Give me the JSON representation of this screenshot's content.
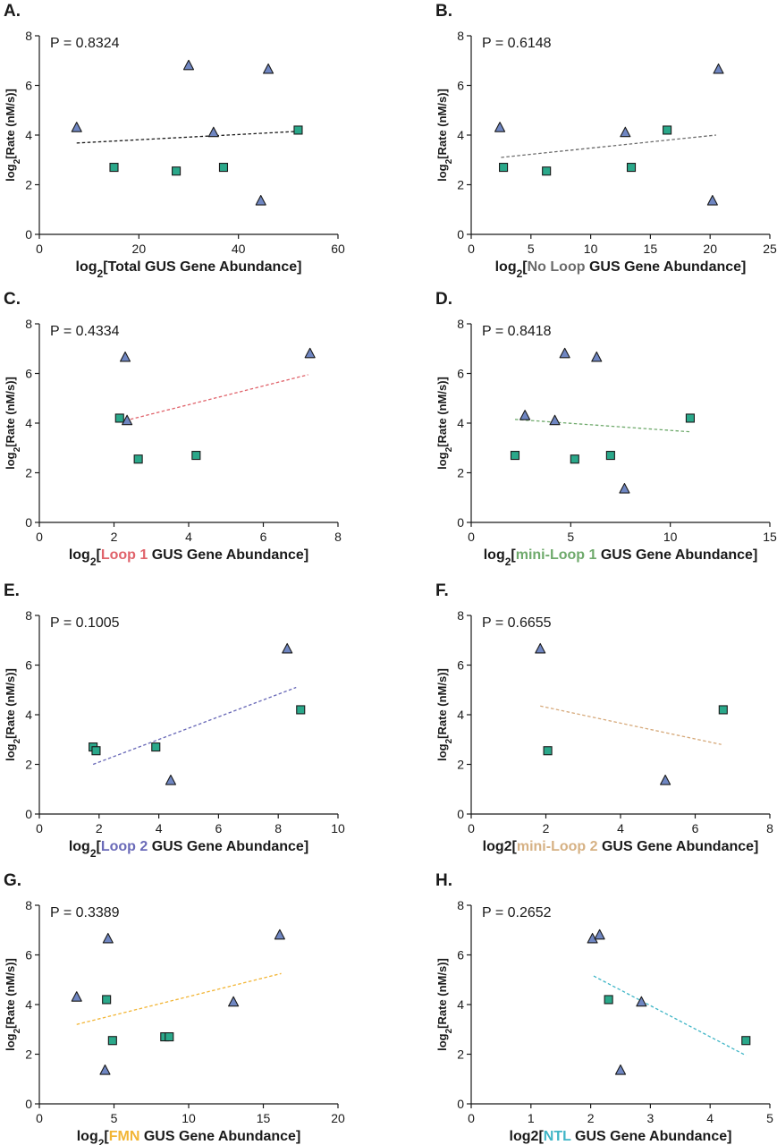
{
  "colors": {
    "triangle": "#6f86c2",
    "square": "#2aa88a",
    "text": "#1a1a1a"
  },
  "chart_data": [
    {
      "type": "scatter",
      "panel": "A.",
      "p_label": "P = 0.8324",
      "xlabel_parts": [
        {
          "text": "log"
        },
        {
          "text": "2",
          "sub": true
        },
        {
          "text": "[Total GUS Gene Abundance]"
        }
      ],
      "ylabel_parts": [
        {
          "text": "log"
        },
        {
          "text": "2",
          "sub": true
        },
        {
          "text": "[Rate (nM/s)]"
        }
      ],
      "xlim": [
        0,
        60
      ],
      "xticks": [
        0,
        20,
        40,
        60
      ],
      "ylim": [
        0,
        8
      ],
      "yticks": [
        0,
        2,
        4,
        6,
        8
      ],
      "trend_color": "#1a1a1a",
      "trendline": [
        [
          7.5,
          3.68
        ],
        [
          52,
          4.15
        ]
      ],
      "triangles": [
        [
          7.5,
          4.3
        ],
        [
          30,
          6.8
        ],
        [
          35,
          4.1
        ],
        [
          44.5,
          1.35
        ],
        [
          46,
          6.65
        ]
      ],
      "squares": [
        [
          15,
          2.7
        ],
        [
          27.5,
          2.55
        ],
        [
          37,
          2.7
        ],
        [
          52,
          4.2
        ]
      ]
    },
    {
      "type": "scatter",
      "panel": "B.",
      "p_label": "P = 0.6148",
      "xlabel_parts": [
        {
          "text": "log"
        },
        {
          "text": "2",
          "sub": true
        },
        {
          "text": "["
        },
        {
          "text": "No Loop",
          "color": "#6b6b6b"
        },
        {
          "text": " GUS Gene Abundance]"
        }
      ],
      "ylabel_parts": [
        {
          "text": "log"
        },
        {
          "text": "2",
          "sub": true
        },
        {
          "text": "[Rate (nM/s)]"
        }
      ],
      "xlim": [
        0,
        25
      ],
      "xticks": [
        0,
        5,
        10,
        15,
        20,
        25
      ],
      "ylim": [
        0,
        8
      ],
      "yticks": [
        0,
        2,
        4,
        6,
        8
      ],
      "trend_color": "#6b6b6b",
      "trendline": [
        [
          2.5,
          3.1
        ],
        [
          20.5,
          4.0
        ]
      ],
      "triangles": [
        [
          2.4,
          4.3
        ],
        [
          12.9,
          4.1
        ],
        [
          20.2,
          1.35
        ],
        [
          20.7,
          6.65
        ]
      ],
      "squares": [
        [
          2.7,
          2.7
        ],
        [
          6.3,
          2.55
        ],
        [
          13.4,
          2.7
        ],
        [
          16.4,
          4.2
        ]
      ]
    },
    {
      "type": "scatter",
      "panel": "C.",
      "p_label": "P = 0.4334",
      "xlabel_parts": [
        {
          "text": "log"
        },
        {
          "text": "2",
          "sub": true
        },
        {
          "text": "["
        },
        {
          "text": "Loop 1",
          "color": "#e0636b"
        },
        {
          "text": " GUS Gene Abundance]"
        }
      ],
      "ylabel_parts": [
        {
          "text": "log"
        },
        {
          "text": "2",
          "sub": true
        },
        {
          "text": "[Rate (nM/s)]"
        }
      ],
      "xlim": [
        0,
        8
      ],
      "xticks": [
        0,
        2,
        4,
        6,
        8
      ],
      "ylim": [
        0,
        8
      ],
      "yticks": [
        0,
        2,
        4,
        6,
        8
      ],
      "trend_color": "#e0636b",
      "trendline": [
        [
          2.3,
          4.1
        ],
        [
          7.2,
          5.95
        ]
      ],
      "triangles": [
        [
          2.3,
          6.65
        ],
        [
          2.35,
          4.1
        ],
        [
          7.25,
          6.8
        ]
      ],
      "squares": [
        [
          2.15,
          4.2
        ],
        [
          2.65,
          2.55
        ],
        [
          4.2,
          2.7
        ]
      ]
    },
    {
      "type": "scatter",
      "panel": "D.",
      "p_label": "P = 0.8418",
      "xlabel_parts": [
        {
          "text": "log"
        },
        {
          "text": "2",
          "sub": true
        },
        {
          "text": "["
        },
        {
          "text": "mini-Loop 1",
          "color": "#6faa6c"
        },
        {
          "text": " GUS Gene Abundance]"
        }
      ],
      "ylabel_parts": [
        {
          "text": "log"
        },
        {
          "text": "2",
          "sub": true
        },
        {
          "text": "[Rate (nM/s)]"
        }
      ],
      "xlim": [
        0,
        15
      ],
      "xticks": [
        0,
        5,
        10,
        15
      ],
      "ylim": [
        0,
        8
      ],
      "yticks": [
        0,
        2,
        4,
        6,
        8
      ],
      "trend_color": "#6faa6c",
      "trendline": [
        [
          2.2,
          4.15
        ],
        [
          11,
          3.65
        ]
      ],
      "triangles": [
        [
          2.7,
          4.3
        ],
        [
          4.2,
          4.1
        ],
        [
          4.7,
          6.8
        ],
        [
          6.3,
          6.65
        ],
        [
          7.7,
          1.35
        ]
      ],
      "squares": [
        [
          2.2,
          2.7
        ],
        [
          5.2,
          2.55
        ],
        [
          7,
          2.7
        ],
        [
          11,
          4.2
        ]
      ]
    },
    {
      "type": "scatter",
      "panel": "E.",
      "p_label": "P = 0.1005",
      "xlabel_parts": [
        {
          "text": "log"
        },
        {
          "text": "2",
          "sub": true
        },
        {
          "text": "["
        },
        {
          "text": "Loop 2",
          "color": "#6a6ab8"
        },
        {
          "text": " GUS Gene Abundance]"
        }
      ],
      "ylabel_parts": [
        {
          "text": "log"
        },
        {
          "text": "2",
          "sub": true
        },
        {
          "text": "[Rate (nM/s)]"
        }
      ],
      "xlim": [
        0,
        10
      ],
      "xticks": [
        0,
        2,
        4,
        6,
        8,
        10
      ],
      "ylim": [
        0,
        8
      ],
      "yticks": [
        0,
        2,
        4,
        6,
        8
      ],
      "trend_color": "#6a6ab8",
      "trendline": [
        [
          1.8,
          2.0
        ],
        [
          8.6,
          5.1
        ]
      ],
      "triangles": [
        [
          4.4,
          1.35
        ],
        [
          8.3,
          6.65
        ]
      ],
      "squares": [
        [
          1.8,
          2.7
        ],
        [
          1.9,
          2.55
        ],
        [
          3.9,
          2.7
        ],
        [
          8.75,
          4.2
        ]
      ]
    },
    {
      "type": "scatter",
      "panel": "F.",
      "p_label": "P = 0.6655",
      "xlabel_parts": [
        {
          "text": "log2["
        },
        {
          "text": "mini-Loop 2",
          "color": "#d6b184"
        },
        {
          "text": " GUS Gene Abundance]"
        }
      ],
      "ylabel_parts": [
        {
          "text": "log"
        },
        {
          "text": "2",
          "sub": true
        },
        {
          "text": "[Rate (nM/s)]"
        }
      ],
      "xlim": [
        0,
        8
      ],
      "xticks": [
        0,
        2,
        4,
        6,
        8
      ],
      "ylim": [
        0,
        8
      ],
      "yticks": [
        0,
        2,
        4,
        6,
        8
      ],
      "trend_color": "#d6a97a",
      "trendline": [
        [
          1.85,
          4.35
        ],
        [
          6.7,
          2.8
        ]
      ],
      "triangles": [
        [
          1.85,
          6.65
        ],
        [
          5.2,
          1.35
        ]
      ],
      "squares": [
        [
          2.05,
          2.55
        ],
        [
          6.75,
          4.2
        ]
      ]
    },
    {
      "type": "scatter",
      "panel": "G.",
      "p_label": "P = 0.3389",
      "xlabel_parts": [
        {
          "text": "log"
        },
        {
          "text": "2",
          "sub": true
        },
        {
          "text": "["
        },
        {
          "text": "FMN",
          "color": "#f2b535"
        },
        {
          "text": " GUS Gene Abundance]"
        }
      ],
      "ylabel_parts": [
        {
          "text": "log"
        },
        {
          "text": "2",
          "sub": true
        },
        {
          "text": "[Rate (nM/s)]"
        }
      ],
      "xlim": [
        0,
        20
      ],
      "xticks": [
        0,
        5,
        10,
        15,
        20
      ],
      "ylim": [
        0,
        8
      ],
      "yticks": [
        0,
        2,
        4,
        6,
        8
      ],
      "trend_color": "#f2b535",
      "trendline": [
        [
          2.5,
          3.2
        ],
        [
          16.2,
          5.25
        ]
      ],
      "triangles": [
        [
          2.5,
          4.3
        ],
        [
          4.4,
          1.35
        ],
        [
          4.6,
          6.65
        ],
        [
          13,
          4.1
        ],
        [
          16.1,
          6.8
        ]
      ],
      "squares": [
        [
          4.5,
          4.2
        ],
        [
          4.9,
          2.55
        ],
        [
          8.4,
          2.7
        ],
        [
          8.7,
          2.7
        ]
      ]
    },
    {
      "type": "scatter",
      "panel": "H.",
      "p_label": "P = 0.2652",
      "xlabel_parts": [
        {
          "text": "log2["
        },
        {
          "text": "NTL",
          "color": "#3fb5c6"
        },
        {
          "text": " GUS Gene Abundance]"
        }
      ],
      "ylabel_parts": [
        {
          "text": "log"
        },
        {
          "text": "2",
          "sub": true
        },
        {
          "text": "[Rate (nM/s)]"
        }
      ],
      "xlim": [
        0,
        5
      ],
      "xticks": [
        0,
        1,
        2,
        3,
        4,
        5
      ],
      "ylim": [
        0,
        8
      ],
      "yticks": [
        0,
        2,
        4,
        6,
        8
      ],
      "trend_color": "#3fb5c6",
      "trendline": [
        [
          2.05,
          5.15
        ],
        [
          4.6,
          1.95
        ]
      ],
      "triangles": [
        [
          2.03,
          6.65
        ],
        [
          2.15,
          6.8
        ],
        [
          2.5,
          1.35
        ],
        [
          2.85,
          4.1
        ]
      ],
      "squares": [
        [
          2.3,
          4.2
        ],
        [
          4.6,
          2.55
        ]
      ]
    }
  ]
}
